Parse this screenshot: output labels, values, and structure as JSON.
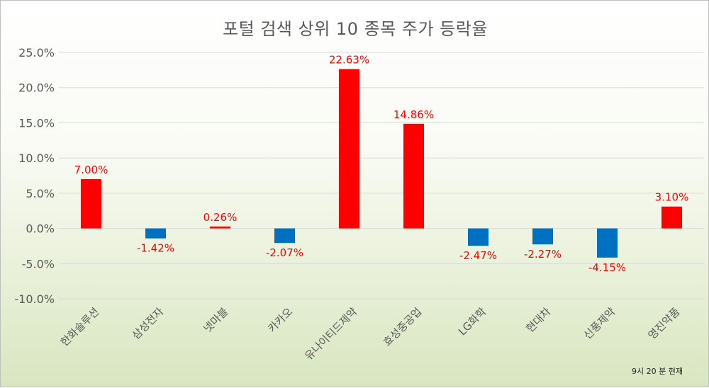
{
  "chart_data": {
    "type": "bar",
    "title": "포털 검색 상위 10 종목 주가 등락율",
    "categories": [
      "한화솔루션",
      "삼성전자",
      "넷마블",
      "카카오",
      "유나이티드제약",
      "효성중공업",
      "LG화학",
      "현대차",
      "신풍제약",
      "영진약품"
    ],
    "values": [
      7.0,
      -1.42,
      0.26,
      -2.07,
      22.63,
      14.86,
      -2.47,
      -2.27,
      -4.15,
      3.1
    ],
    "data_labels": [
      "7.00%",
      "-1.42%",
      "0.26%",
      "-2.07%",
      "22.63%",
      "14.86%",
      "-2.47%",
      "-2.27%",
      "-4.15%",
      "3.10%"
    ],
    "ylim": [
      -10,
      25
    ],
    "ytick_values": [
      25,
      20,
      15,
      10,
      5,
      0,
      -5,
      -10
    ],
    "ytick_labels": [
      "25.0%",
      "20.0%",
      "15.0%",
      "10.0%",
      "5.0%",
      "0.0%",
      "-5.0%",
      "-10.0%"
    ],
    "grid": true,
    "colors": {
      "positive": "#ff0000",
      "negative": "#0070c0",
      "gridline": "#d9d9d9",
      "axis_text": "#595959"
    }
  },
  "footnote": "9시 20 분 현재"
}
